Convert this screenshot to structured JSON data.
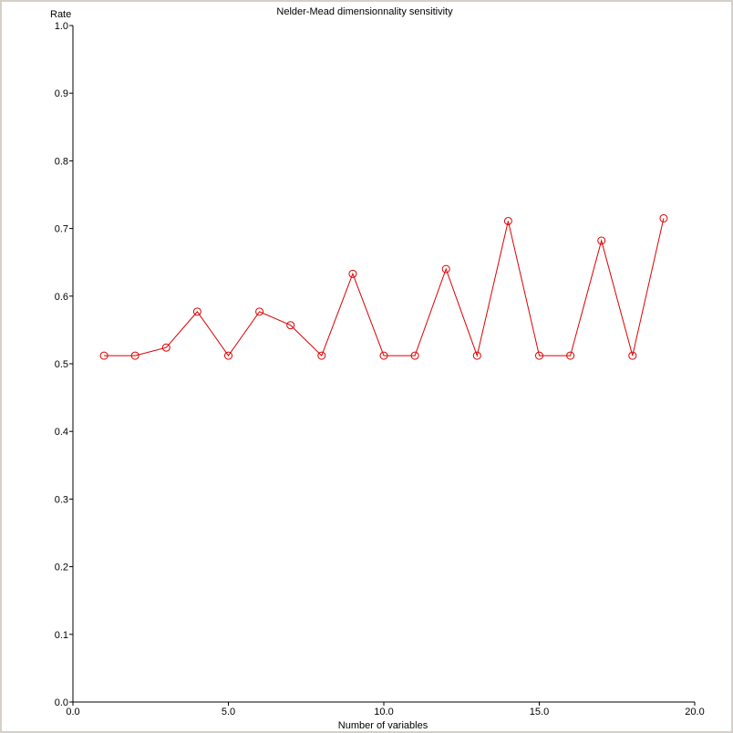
{
  "chart_data": {
    "type": "line",
    "title": "Nelder-Mead dimensionnality sensitivity",
    "xlabel": "Number of variables",
    "ylabel": "Rate",
    "xlim": [
      0,
      20
    ],
    "ylim": [
      0,
      1
    ],
    "x_ticks": [
      0,
      5,
      10,
      15,
      20
    ],
    "x_tick_labels": [
      "0.0",
      "5.0",
      "10.0",
      "15.0",
      "20.0"
    ],
    "y_ticks": [
      0,
      0.1,
      0.2,
      0.3,
      0.4,
      0.5,
      0.6,
      0.7,
      0.8,
      0.9,
      1.0
    ],
    "y_tick_labels": [
      "0.0",
      "0.1",
      "0.2",
      "0.3",
      "0.4",
      "0.5",
      "0.6",
      "0.7",
      "0.8",
      "0.9",
      "1.0"
    ],
    "grid": false,
    "series": [
      {
        "color": "#dd0000",
        "marker": "circle",
        "x": [
          1,
          2,
          3,
          4,
          5,
          6,
          7,
          8,
          9,
          10,
          11,
          12,
          13,
          14,
          15,
          16,
          17,
          18,
          19
        ],
        "y": [
          0.512,
          0.512,
          0.524,
          0.577,
          0.512,
          0.577,
          0.557,
          0.512,
          0.633,
          0.512,
          0.512,
          0.64,
          0.512,
          0.711,
          0.512,
          0.512,
          0.682,
          0.512,
          0.715
        ]
      }
    ]
  }
}
